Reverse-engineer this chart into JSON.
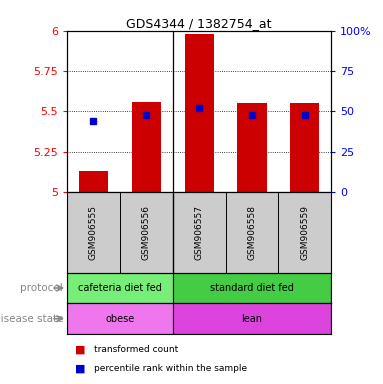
{
  "title": "GDS4344 / 1382754_at",
  "samples": [
    "GSM906555",
    "GSM906556",
    "GSM906557",
    "GSM906558",
    "GSM906559"
  ],
  "bar_values": [
    5.13,
    5.56,
    5.98,
    5.55,
    5.55
  ],
  "bar_base": 5.0,
  "blue_values": [
    5.44,
    5.48,
    5.52,
    5.48,
    5.48
  ],
  "ylim": [
    5.0,
    6.0
  ],
  "yticks_left": [
    5,
    5.25,
    5.5,
    5.75,
    6
  ],
  "yticks_right": [
    0,
    25,
    50,
    75,
    100
  ],
  "bar_color": "#cc0000",
  "blue_color": "#0000cc",
  "protocol_groups": [
    {
      "label": "cafeteria diet fed",
      "start": 0,
      "end": 2,
      "color": "#77ee77"
    },
    {
      "label": "standard diet fed",
      "start": 2,
      "end": 5,
      "color": "#44cc44"
    }
  ],
  "disease_groups": [
    {
      "label": "obese",
      "start": 0,
      "end": 2,
      "color": "#ee77ee"
    },
    {
      "label": "lean",
      "start": 2,
      "end": 5,
      "color": "#dd44dd"
    }
  ],
  "protocol_label": "protocol",
  "disease_label": "disease state",
  "legend_red": "transformed count",
  "legend_blue": "percentile rank within the sample",
  "bg_color": "#ffffff",
  "sample_box_color": "#cccccc",
  "bar_width": 0.55
}
